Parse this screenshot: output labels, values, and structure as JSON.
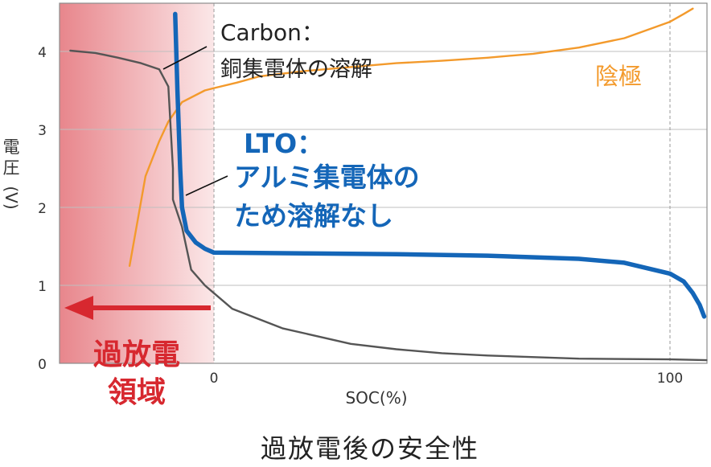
{
  "caption": "過放電後の安全性",
  "chart_data": {
    "type": "line",
    "xlabel": "SOC(%)",
    "ylabel_chars": [
      "電",
      "圧",
      "(V)"
    ],
    "xlim": [
      -34,
      109
    ],
    "ylim": [
      0,
      4.6
    ],
    "x_ticks": [
      0,
      100
    ],
    "y_ticks": [
      0,
      1,
      2,
      3,
      4
    ],
    "grid": true,
    "series": [
      {
        "key": "cathode",
        "color": "#f39a2c",
        "points": [
          [
            -18.5,
            1.25
          ],
          [
            -15,
            2.4
          ],
          [
            -12,
            2.85
          ],
          [
            -10,
            3.1
          ],
          [
            -7,
            3.35
          ],
          [
            -2,
            3.5
          ],
          [
            0,
            3.53
          ],
          [
            5,
            3.6
          ],
          [
            10,
            3.68
          ],
          [
            20,
            3.75
          ],
          [
            30,
            3.8
          ],
          [
            40,
            3.85
          ],
          [
            50,
            3.88
          ],
          [
            60,
            3.92
          ],
          [
            70,
            3.97
          ],
          [
            80,
            4.05
          ],
          [
            90,
            4.17
          ],
          [
            100,
            4.38
          ],
          [
            103,
            4.48
          ],
          [
            105,
            4.55
          ]
        ]
      },
      {
        "key": "carbon",
        "color": "#555555",
        "points": [
          [
            -31.5,
            4.01
          ],
          [
            -26,
            3.98
          ],
          [
            -21,
            3.92
          ],
          [
            -16,
            3.85
          ],
          [
            -12,
            3.77
          ],
          [
            -10,
            3.55
          ],
          [
            -9,
            2.5
          ],
          [
            -9,
            2.1
          ],
          [
            -7,
            1.75
          ],
          [
            -5,
            1.2
          ],
          [
            -2,
            1.0
          ],
          [
            0,
            0.9
          ],
          [
            4,
            0.7
          ],
          [
            15,
            0.45
          ],
          [
            30,
            0.25
          ],
          [
            40,
            0.18
          ],
          [
            50,
            0.13
          ],
          [
            60,
            0.1
          ],
          [
            80,
            0.06
          ],
          [
            100,
            0.05
          ],
          [
            108,
            0.04
          ]
        ]
      },
      {
        "key": "lto",
        "color": "#1466b8",
        "points": [
          [
            -8.5,
            4.48
          ],
          [
            -8,
            3.5
          ],
          [
            -7.4,
            2.5
          ],
          [
            -7,
            2.0
          ],
          [
            -6,
            1.7
          ],
          [
            -4,
            1.55
          ],
          [
            -2,
            1.47
          ],
          [
            0,
            1.42
          ],
          [
            20,
            1.41
          ],
          [
            40,
            1.4
          ],
          [
            60,
            1.38
          ],
          [
            80,
            1.34
          ],
          [
            90,
            1.29
          ],
          [
            95,
            1.22
          ],
          [
            100,
            1.15
          ],
          [
            103,
            1.05
          ],
          [
            105,
            0.9
          ],
          [
            106.5,
            0.75
          ],
          [
            107.5,
            0.6
          ]
        ]
      }
    ],
    "annotations": {
      "carbon_label": [
        "Carbon：",
        "銅集電体の溶解"
      ],
      "lto_label": [
        "LTO：",
        "アルミ集電体の",
        "ため溶解なし"
      ],
      "cathode_label": "陰極",
      "region_label": [
        "過放電",
        "領域"
      ]
    }
  }
}
